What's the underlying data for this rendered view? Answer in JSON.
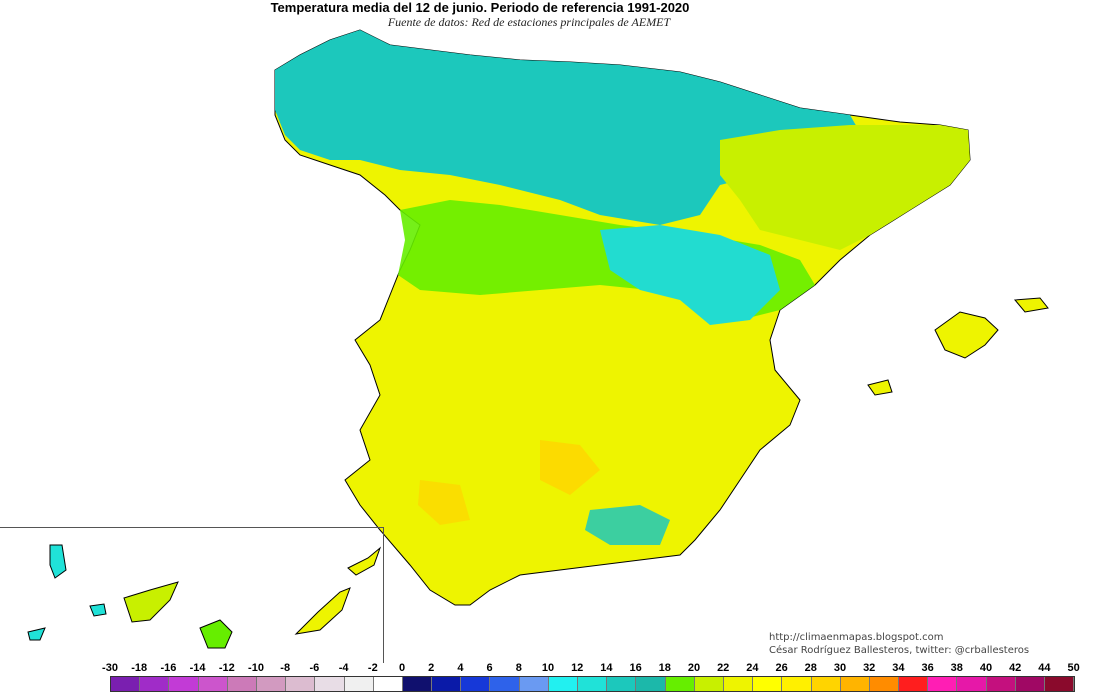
{
  "title": "Temperatura media del 12 de junio. Periodo de referencia 1991-2020",
  "subtitle": "Fuente de datos: Red de estaciones principales de AEMET",
  "credits": {
    "website": "http://climaenmapas.blogspot.com",
    "author": "César Rodríguez Ballesteros, twitter: @crballesteros"
  },
  "legend": {
    "labels": [
      "-30",
      "-18",
      "-16",
      "-14",
      "-12",
      "-10",
      "-8",
      "-6",
      "-4",
      "-2",
      "0",
      "2",
      "4",
      "6",
      "8",
      "10",
      "12",
      "14",
      "16",
      "18",
      "20",
      "22",
      "24",
      "26",
      "28",
      "30",
      "32",
      "34",
      "36",
      "38",
      "40",
      "42",
      "44",
      "50"
    ],
    "colors": [
      "#7a1fb0",
      "#a02cc8",
      "#c23bd6",
      "#cc55cc",
      "#cc7ab8",
      "#d29ac0",
      "#dcbcd0",
      "#e8dde6",
      "#f0f0f0",
      "#ffffff",
      "#10106e",
      "#0a1aa8",
      "#1638d8",
      "#2e62ea",
      "#6a9af2",
      "#22f0f0",
      "#20e2d8",
      "#1cc8bc",
      "#1cb8aa",
      "#66ee00",
      "#c8f000",
      "#eef400",
      "#ffff00",
      "#fff000",
      "#ffd400",
      "#ffb400",
      "#ff8c00",
      "#ff1e1e",
      "#ff1eb4",
      "#e618a8",
      "#c4107e",
      "#a00864",
      "#8a0a2c"
    ]
  }
}
